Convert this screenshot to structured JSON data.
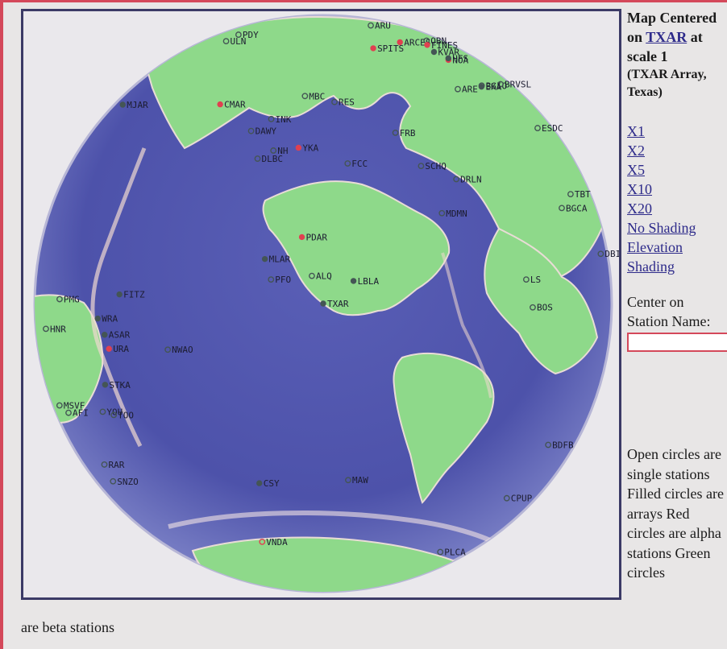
{
  "sidebar": {
    "title_prefix": "Map Centered on ",
    "center_station": "TXAR",
    "title_scale": " at scale 1",
    "subtitle": "(TXAR Array, Texas)",
    "zoom_links": [
      "X1",
      "X2",
      "X5",
      "X10",
      "X20"
    ],
    "shading_links": [
      "No Shading",
      "Elevation Shading"
    ],
    "center_on_label": "Center on Station Name:",
    "station_input_value": ""
  },
  "legend": {
    "side_text": "Open circles are single stations Filled circles are arrays Red circles are alpha stations Green circles",
    "bottom_text": "are beta stations"
  },
  "colors": {
    "frame": "#d4485a",
    "ocean": "#4a4fa8",
    "land": "#8ed98a",
    "alpha": "#e04050",
    "station": "#445555"
  },
  "stations": [
    {
      "code": "CMAR",
      "kind": "array",
      "cls": "alpha",
      "lat": 18.5,
      "lon": 98.9
    },
    {
      "code": "ULN",
      "kind": "single",
      "cls": "beta",
      "lat": 47.9,
      "lon": 107.1
    },
    {
      "code": "PDY",
      "kind": "single",
      "cls": "beta",
      "lat": 59.6,
      "lon": 112.6
    },
    {
      "code": "ARU",
      "kind": "single",
      "cls": "beta",
      "lat": 56.4,
      "lon": 58.6
    },
    {
      "code": "KVAR",
      "kind": "array",
      "cls": "beta",
      "lat": 41.6,
      "lon": 44.7
    },
    {
      "code": "OBN",
      "kind": "single",
      "cls": "beta",
      "lat": 55.1,
      "lon": 36.6
    },
    {
      "code": "BGIO",
      "kind": "single",
      "cls": "beta",
      "lat": 31.7,
      "lon": 35.1
    },
    {
      "code": "ARCES",
      "kind": "array",
      "cls": "alpha",
      "lat": 69.5,
      "lon": 25.5
    },
    {
      "code": "FINES",
      "kind": "array",
      "cls": "alpha",
      "lat": 61.4,
      "lon": 26.1
    },
    {
      "code": "SPITS",
      "kind": "array",
      "cls": "alpha",
      "lat": 78.2,
      "lon": 16.4
    },
    {
      "code": "NOA",
      "kind": "array",
      "cls": "alpha",
      "lat": 60.7,
      "lon": 11.5
    },
    {
      "code": "HFS",
      "kind": "array",
      "cls": "beta",
      "lat": 60.1,
      "lon": 13.7
    },
    {
      "code": "BRVSL",
      "kind": "single",
      "cls": "beta",
      "lat": 44.9,
      "lon": 14.0
    },
    {
      "code": "EKA",
      "kind": "array",
      "cls": "beta",
      "lat": 55.3,
      "lon": -3.2
    },
    {
      "code": "ESDC",
      "kind": "single",
      "cls": "beta",
      "lat": 39.7,
      "lon": -3.9
    },
    {
      "code": "ARE",
      "kind": "single",
      "cls": "beta",
      "lat": 26.4,
      "lon": 44.2
    },
    {
      "code": "MJAR",
      "kind": "array",
      "cls": "beta",
      "lat": 36.5,
      "lon": 138.2
    },
    {
      "code": "MBC",
      "kind": "single",
      "cls": "beta",
      "lat": 76.2,
      "lon": -119.4
    },
    {
      "code": "RES",
      "kind": "single",
      "cls": "beta",
      "lat": 74.7,
      "lon": -95.0
    },
    {
      "code": "INK",
      "kind": "single",
      "cls": "beta",
      "lat": 68.3,
      "lon": -133.5
    },
    {
      "code": "DAWY",
      "kind": "single",
      "cls": "beta",
      "lat": 64.1,
      "lon": -139.4
    },
    {
      "code": "FRB",
      "kind": "single",
      "cls": "beta",
      "lat": 63.7,
      "lon": -68.5
    },
    {
      "code": "YKA",
      "kind": "array",
      "cls": "alpha",
      "lat": 62.5,
      "lon": -114.6
    },
    {
      "code": "NH",
      "kind": "single",
      "cls": "beta",
      "lat": 61.0,
      "lon": -125.0
    },
    {
      "code": "DLBC",
      "kind": "single",
      "cls": "beta",
      "lat": 58.4,
      "lon": -130.0
    },
    {
      "code": "FCC",
      "kind": "single",
      "cls": "beta",
      "lat": 58.8,
      "lon": -94.1
    },
    {
      "code": "SCHQ",
      "kind": "single",
      "cls": "beta",
      "lat": 54.8,
      "lon": -66.8
    },
    {
      "code": "DRLN",
      "kind": "single",
      "cls": "beta",
      "lat": 49.3,
      "lon": -57.5
    },
    {
      "code": "MDMN",
      "kind": "single",
      "cls": "beta",
      "lat": 44.0,
      "lon": -68.0
    },
    {
      "code": "PDAR",
      "kind": "array",
      "cls": "alpha",
      "lat": 42.8,
      "lon": -109.6
    },
    {
      "code": "TXAR",
      "kind": "array",
      "cls": "beta",
      "lat": 29.3,
      "lon": -103.7
    },
    {
      "code": "PFO",
      "kind": "single",
      "cls": "beta",
      "lat": 33.6,
      "lon": -116.5
    },
    {
      "code": "ALQ",
      "kind": "single",
      "cls": "beta",
      "lat": 34.9,
      "lon": -106.5
    },
    {
      "code": "MLAR",
      "kind": "array",
      "cls": "beta",
      "lat": 37.6,
      "lon": -118.8
    },
    {
      "code": "LBLA",
      "kind": "array",
      "cls": "beta",
      "lat": 33.7,
      "lon": -96.3
    },
    {
      "code": "TBT",
      "kind": "single",
      "cls": "beta",
      "lat": 28.7,
      "lon": -17.9
    },
    {
      "code": "BGCA",
      "kind": "single",
      "cls": "beta",
      "lat": 5.2,
      "lon": 18.4
    },
    {
      "code": "DBIC",
      "kind": "single",
      "cls": "beta",
      "lat": 6.7,
      "lon": -4.9
    },
    {
      "code": "LS",
      "kind": "single",
      "cls": "beta",
      "lat": -15.3,
      "lon": 28.2
    },
    {
      "code": "BOS",
      "kind": "single",
      "cls": "beta",
      "lat": -19.9,
      "lon": 24.3
    },
    {
      "code": "BDFB",
      "kind": "single",
      "cls": "beta",
      "lat": -15.6,
      "lon": -48.0
    },
    {
      "code": "CPUP",
      "kind": "single",
      "cls": "beta",
      "lat": -26.3,
      "lon": -57.3
    },
    {
      "code": "PLCA",
      "kind": "single",
      "cls": "beta",
      "lat": -40.7,
      "lon": -70.6
    },
    {
      "code": "VNDA",
      "kind": "single",
      "cls": "alpha",
      "lat": -77.5,
      "lon": 161.9
    },
    {
      "code": "CSY",
      "kind": "array",
      "cls": "beta",
      "lat": -66.3,
      "lon": 110.5
    },
    {
      "code": "MAW",
      "kind": "single",
      "cls": "beta",
      "lat": -67.6,
      "lon": 62.9
    },
    {
      "code": "FITZ",
      "kind": "array",
      "cls": "beta",
      "lat": -18.1,
      "lon": 125.6
    },
    {
      "code": "PMG",
      "kind": "single",
      "cls": "beta",
      "lat": -9.4,
      "lon": 147.2
    },
    {
      "code": "HNR",
      "kind": "single",
      "cls": "beta",
      "lat": -9.4,
      "lon": 160.0
    },
    {
      "code": "URA",
      "kind": "array",
      "cls": "alpha",
      "lat": -26.7,
      "lon": 134.3
    },
    {
      "code": "MSVF",
      "kind": "single",
      "cls": "beta",
      "lat": -17.7,
      "lon": 178.1
    },
    {
      "code": "WRA",
      "kind": "array",
      "cls": "beta",
      "lat": -19.9,
      "lon": 134.3
    },
    {
      "code": "ASAR",
      "kind": "array",
      "cls": "beta",
      "lat": -23.7,
      "lon": 133.9
    },
    {
      "code": "NWAO",
      "kind": "single",
      "cls": "beta",
      "lat": -32.9,
      "lon": 117.2
    },
    {
      "code": "STKA",
      "kind": "array",
      "cls": "beta",
      "lat": -31.9,
      "lon": 141.6
    },
    {
      "code": "YOU",
      "kind": "single",
      "cls": "beta",
      "lat": -35.2,
      "lon": 148.9
    },
    {
      "code": "TOO",
      "kind": "single",
      "cls": "beta",
      "lat": -37.6,
      "lon": 145.5
    },
    {
      "code": "AFI",
      "kind": "single",
      "cls": "beta",
      "lat": -13.9,
      "lon": -171.8
    },
    {
      "code": "RAR",
      "kind": "single",
      "cls": "beta",
      "lat": -21.2,
      "lon": -159.8
    },
    {
      "code": "SNZO",
      "kind": "single",
      "cls": "beta",
      "lat": -41.3,
      "lon": 174.7
    }
  ]
}
